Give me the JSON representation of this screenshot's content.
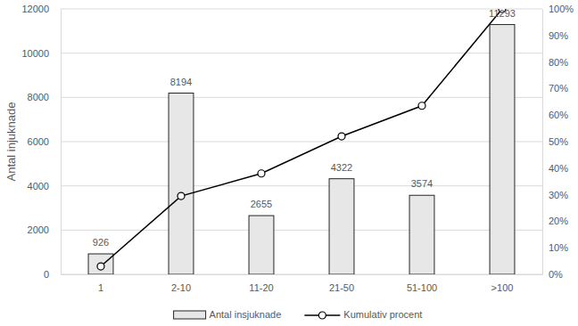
{
  "chart_data": {
    "type": "bar",
    "y_label": "Antal injuknade",
    "categories": [
      "1",
      "2-10",
      "11-20",
      "21-50",
      "51-100",
      ">100"
    ],
    "series": [
      {
        "name": "Antal insjuknade",
        "type": "bar",
        "color": "#e7e7e7",
        "data_labels": true,
        "values": [
          926,
          8194,
          2655,
          4322,
          3574,
          11293
        ]
      },
      {
        "name": "Kumulativ procent",
        "type": "line",
        "axis": "y2",
        "color": "#000000",
        "marker": "circle",
        "values": [
          3,
          29.5,
          38,
          52,
          63.5,
          100
        ]
      }
    ],
    "ylim": [
      0,
      12000
    ],
    "yticks": [
      0,
      2000,
      4000,
      6000,
      8000,
      10000,
      12000
    ],
    "y2lim": [
      0,
      100
    ],
    "y2ticks": [
      {
        "value": 0,
        "label": "0%"
      },
      {
        "value": 10,
        "label": "10%"
      },
      {
        "value": 20,
        "label": "20%"
      },
      {
        "value": 30,
        "label": "30%"
      },
      {
        "value": 40,
        "label": "40%"
      },
      {
        "value": 50,
        "label": "50%"
      },
      {
        "value": 60,
        "label": "60%"
      },
      {
        "value": 70,
        "label": "70%"
      },
      {
        "value": 80,
        "label": "80%"
      },
      {
        "value": 90,
        "label": "90%"
      },
      {
        "value": 100,
        "label": "100%"
      }
    ],
    "grid": true,
    "legend": "bottom"
  }
}
